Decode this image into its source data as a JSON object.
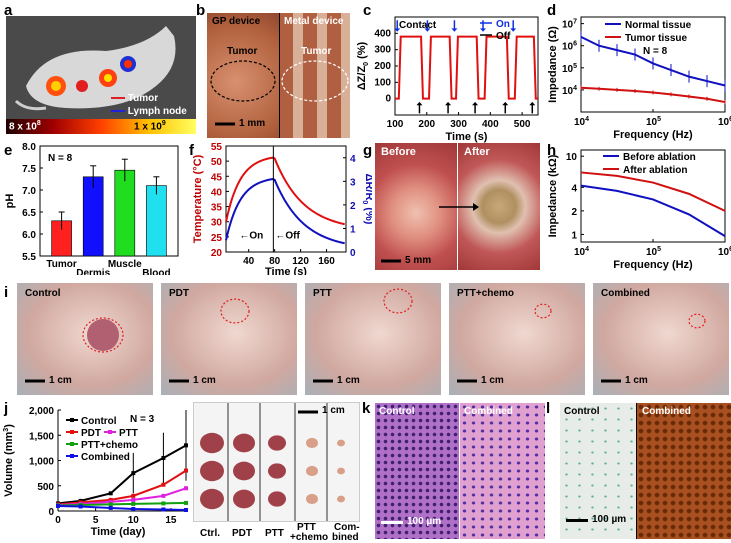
{
  "panels": {
    "a": {
      "label": "a",
      "legend": [
        "Tumor",
        "Lymph node"
      ],
      "scale_min": "8 x 10",
      "scale_min_exp": "8",
      "scale_max": "1 x 10",
      "scale_max_exp": "9",
      "colors": {
        "tumor": "#e02020",
        "lymph": "#2020e0"
      }
    },
    "b": {
      "label": "b",
      "left_title": "GP device",
      "right_title": "Metal device",
      "tumor": "Tumor",
      "scalebar": "1 mm"
    },
    "c": {
      "label": "c",
      "legend": [
        "On",
        "Off"
      ],
      "annotation": "Contact"
    },
    "d": {
      "label": "d",
      "legend": [
        "Normal tissue",
        "Tumor tissue"
      ],
      "n": "N = 8"
    },
    "e": {
      "label": "e",
      "n": "N = 8"
    },
    "f": {
      "label": "f",
      "on": "On",
      "off": "Off"
    },
    "g": {
      "label": "g",
      "before": "Before",
      "after": "After",
      "scalebar": "5 mm"
    },
    "h": {
      "label": "h",
      "legend": [
        "Before ablation",
        "After ablation"
      ]
    },
    "i": {
      "label": "i",
      "groups": [
        "Control",
        "PDT",
        "PTT",
        "PTT+chemo",
        "Combined"
      ],
      "scalebar": "1 cm"
    },
    "j": {
      "label": "j",
      "legend": [
        "Control",
        "PDT",
        "PTT",
        "PTT+chemo",
        "Combined"
      ],
      "n": "N = 3",
      "groups": [
        "Ctrl.",
        "PDT",
        "PTT",
        "PTT",
        "+chemo",
        "Com-",
        "bined"
      ],
      "scalebar": "1 cm"
    },
    "k": {
      "label": "k",
      "left": "Control",
      "right": "Combined",
      "scalebar": "100 µm"
    },
    "l": {
      "label": "l",
      "left": "Control",
      "right": "Combined",
      "scalebar": "100 µm"
    }
  },
  "chart_data": [
    {
      "id": "c",
      "type": "line",
      "xlabel": "Time (s)",
      "ylabel": "ΔZ/Z",
      "ylabel_sub": "0",
      "ylabel_unit": "(%)",
      "xlim": [
        100,
        550
      ],
      "ylim": [
        -100,
        500
      ],
      "xticks": [
        100,
        200,
        300,
        400,
        500
      ],
      "yticks": [
        0,
        100,
        200,
        300,
        400
      ],
      "on_times": [
        115,
        210,
        295,
        385,
        480,
        555
      ],
      "off_times": [
        185,
        275,
        360,
        455,
        540
      ],
      "high": 380,
      "low": 0
    },
    {
      "id": "d",
      "type": "line",
      "xlabel": "Frequency (Hz)",
      "ylabel": "Impedance (Ω)",
      "log": true,
      "xticks": [
        "10",
        "10",
        "10"
      ],
      "xticks_exp": [
        "4",
        "5",
        "6"
      ],
      "yticks": [
        "10",
        "10",
        "10",
        "10"
      ],
      "yticks_exp": [
        "4",
        "5",
        "6",
        "7"
      ],
      "series": [
        {
          "name": "Normal tissue",
          "color": "#1010c0",
          "x": [
            4,
            4.25,
            4.5,
            4.75,
            5,
            5.25,
            5.5,
            5.75,
            6
          ],
          "y": [
            6.4,
            6.0,
            5.8,
            5.6,
            5.2,
            4.9,
            4.6,
            4.4,
            4.2
          ]
        },
        {
          "name": "Tumor tissue",
          "color": "#d01010",
          "x": [
            4,
            4.25,
            4.5,
            4.75,
            5,
            5.25,
            5.5,
            5.75,
            6
          ],
          "y": [
            4.1,
            4.05,
            4.0,
            3.95,
            3.88,
            3.8,
            3.7,
            3.6,
            3.45
          ]
        }
      ]
    },
    {
      "id": "e",
      "type": "bar",
      "ylabel": "pH",
      "ylim": [
        5.5,
        8.0
      ],
      "yticks": [
        5.5,
        6.0,
        6.5,
        7.0,
        7.5,
        8.0
      ],
      "categories": [
        "Tumor",
        "Dermis",
        "Muscle",
        "Blood"
      ],
      "values": [
        6.3,
        7.3,
        7.45,
        7.1
      ],
      "errors": [
        0.2,
        0.25,
        0.25,
        0.2
      ],
      "colors": [
        "#ff2020",
        "#1010ff",
        "#20dd20",
        "#20e0f0"
      ]
    },
    {
      "id": "f",
      "type": "line",
      "xlabel": "Time (s)",
      "ylabel": "Temperature (°C)",
      "ylabel2": "ΔR/R",
      "ylabel2_sub": "0",
      "ylabel2_unit": "(%)",
      "xticks": [
        40,
        80,
        120,
        160
      ],
      "yticks": [
        20,
        25,
        30,
        35,
        40,
        45,
        50,
        55
      ],
      "yticks2": [
        0,
        0.5,
        1,
        1.5,
        2,
        2.5,
        3,
        3.5,
        4,
        4.5
      ],
      "xlim": [
        5,
        190
      ],
      "ylim": [
        20,
        55
      ],
      "y2lim": [
        0,
        4.5
      ],
      "switch_time": 78
    },
    {
      "id": "h",
      "type": "line",
      "xlabel": "Frequency (Hz)",
      "ylabel": "Impedance (kΩ)",
      "log": true,
      "xticks": [
        "10",
        "10",
        "10"
      ],
      "xticks_exp": [
        "4",
        "5",
        "6"
      ],
      "yticks": [
        "1",
        "2",
        "4",
        "10"
      ],
      "series": [
        {
          "name": "Before ablation",
          "color": "#1010c0",
          "x": [
            4,
            4.5,
            5,
            5.5,
            6
          ],
          "y": [
            4.2,
            3.6,
            2.8,
            1.8,
            0.95
          ]
        },
        {
          "name": "After ablation",
          "color": "#d01010",
          "x": [
            4,
            4.5,
            5,
            5.5,
            6
          ],
          "y": [
            6.2,
            5.6,
            4.6,
            3.3,
            2.0
          ]
        }
      ]
    },
    {
      "id": "j",
      "type": "line",
      "xlabel": "Time (day)",
      "ylabel": "Volume (mm",
      "ylabel_sup": "3",
      "ylabel_end": ")",
      "xlim": [
        0,
        17
      ],
      "ylim": [
        0,
        2000
      ],
      "xticks": [
        0,
        5,
        10,
        15
      ],
      "yticks": [
        0,
        500,
        1000,
        1500,
        2000
      ],
      "ytick_labels": [
        "0",
        "500",
        "1,000",
        "1,500",
        "2,000"
      ],
      "x": [
        0,
        3,
        7,
        10,
        14,
        17
      ],
      "series": [
        {
          "name": "Control",
          "color": "#000000",
          "values": [
            150,
            200,
            350,
            750,
            1050,
            1300
          ],
          "errors": [
            0,
            0,
            0,
            400,
            500,
            700
          ]
        },
        {
          "name": "PDT",
          "color": "#e01010",
          "values": [
            130,
            170,
            220,
            300,
            520,
            800
          ]
        },
        {
          "name": "PTT",
          "color": "#e020e0",
          "values": [
            120,
            140,
            180,
            220,
            300,
            450
          ]
        },
        {
          "name": "PTT+chemo",
          "color": "#10a010",
          "values": [
            110,
            120,
            130,
            140,
            150,
            160
          ]
        },
        {
          "name": "Combined",
          "color": "#1010e0",
          "values": [
            100,
            90,
            60,
            40,
            30,
            20
          ]
        }
      ]
    }
  ]
}
